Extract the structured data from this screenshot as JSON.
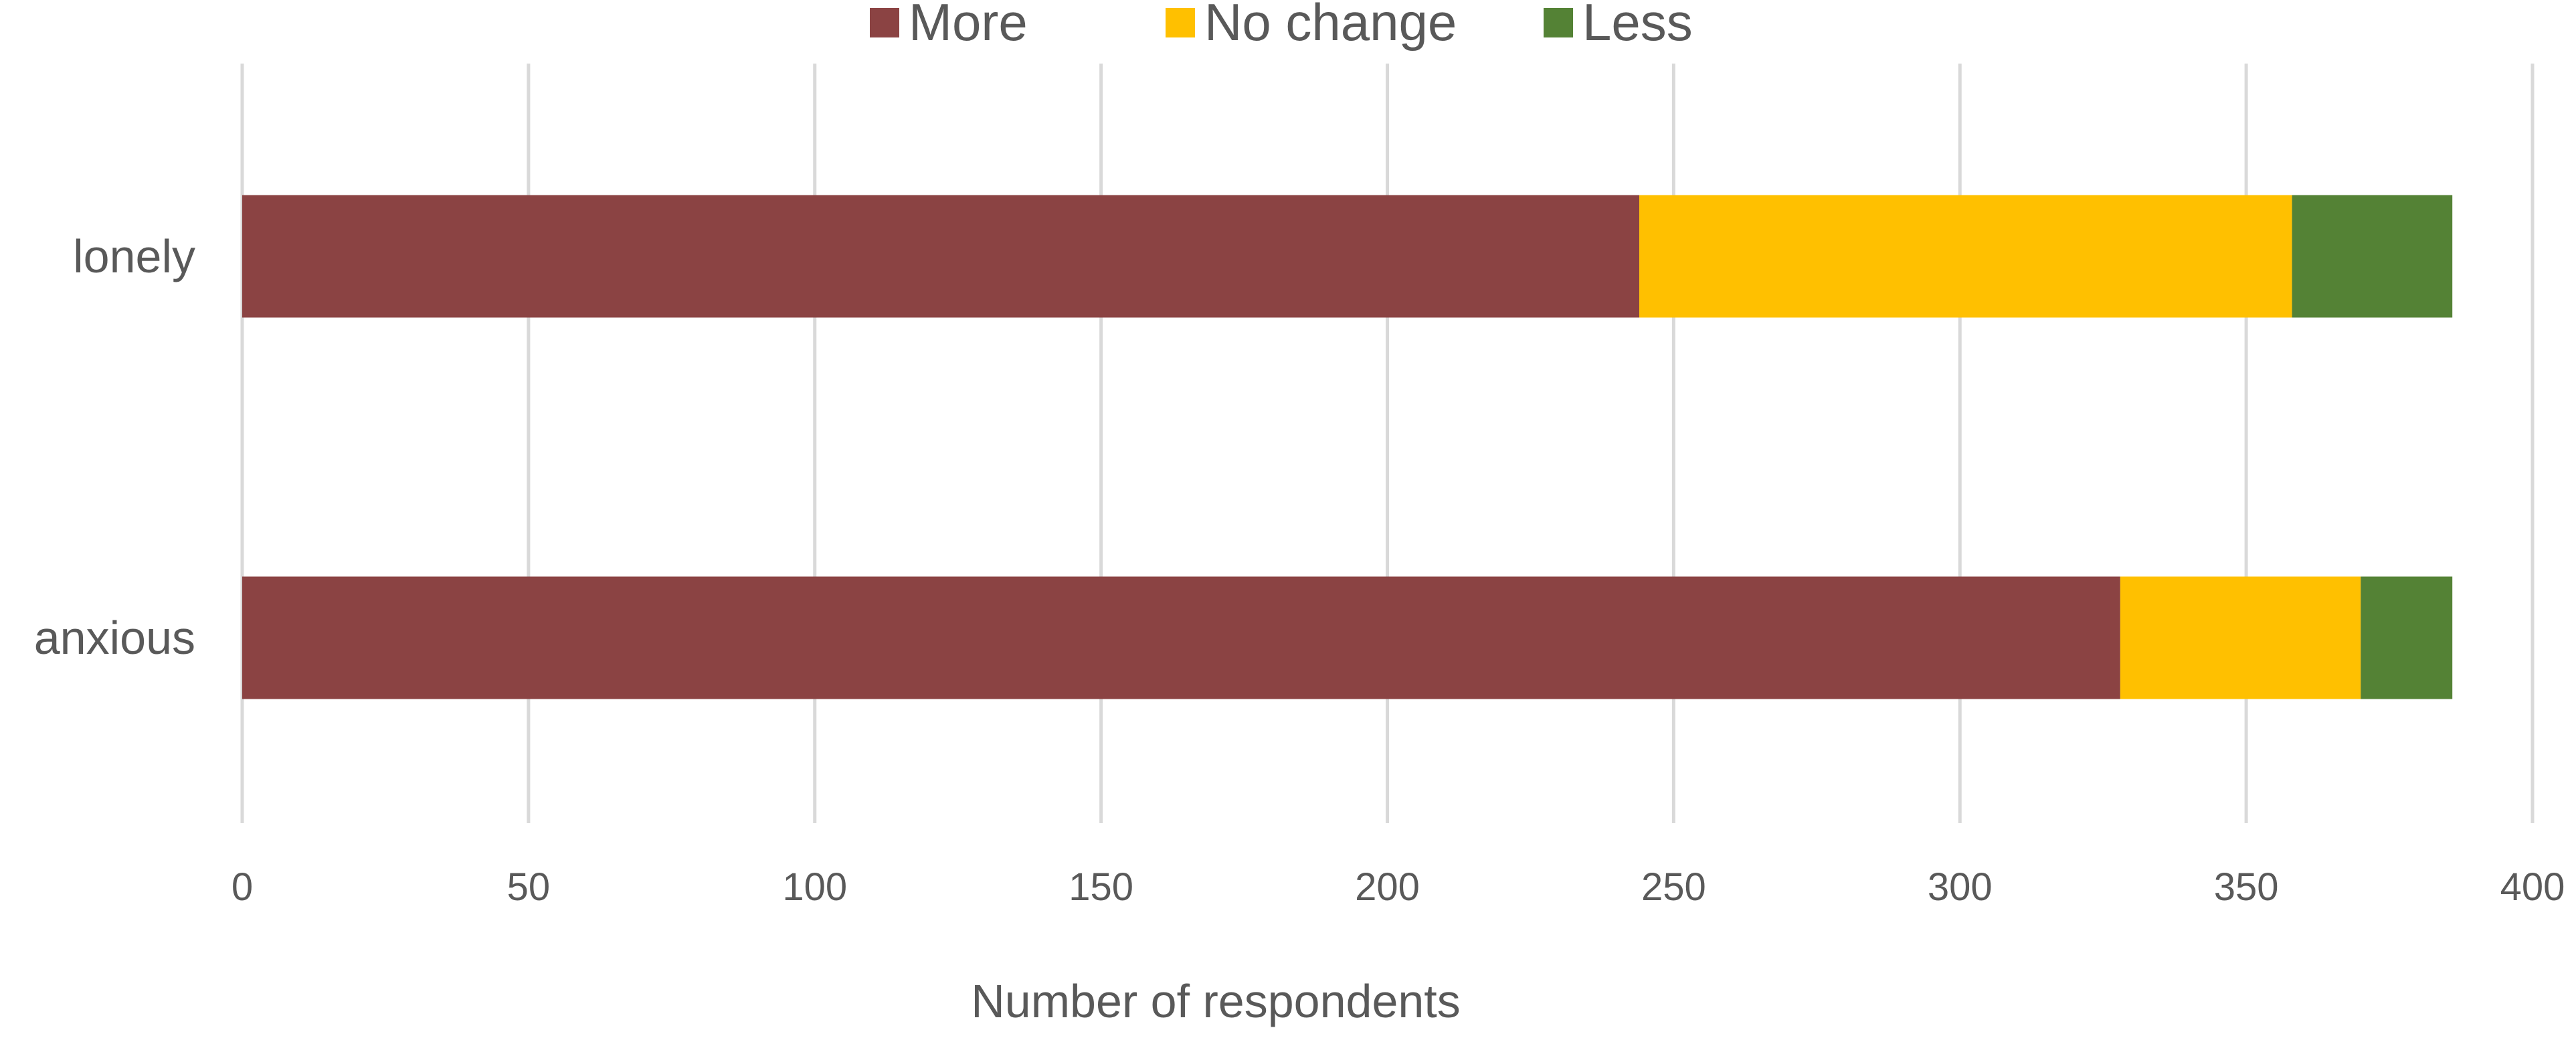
{
  "chart_data": {
    "type": "bar",
    "orientation": "horizontal",
    "stacked": true,
    "categories": [
      "lonely",
      "anxious"
    ],
    "series": [
      {
        "name": "More",
        "color": "#8B4343",
        "values": [
          244,
          328
        ]
      },
      {
        "name": "No change",
        "color": "#FFC000",
        "values": [
          114,
          42
        ]
      },
      {
        "name": "Less",
        "color": "#548235",
        "values": [
          28,
          16
        ]
      }
    ],
    "xlabel": "Number  of respondents",
    "ylabel": "",
    "xlim": [
      0,
      400
    ],
    "xticks": [
      "0",
      "50",
      "100",
      "150",
      "200",
      "250",
      "300",
      "350",
      "400"
    ],
    "grid": true,
    "legend_position": "top"
  }
}
